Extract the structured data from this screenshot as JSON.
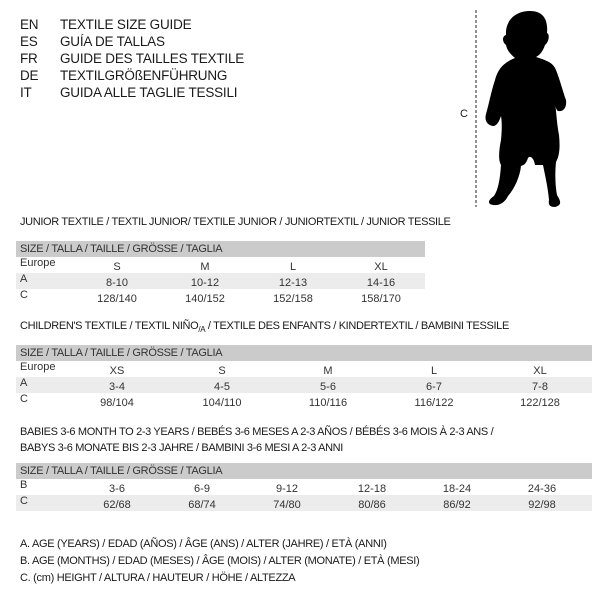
{
  "title_lines": [
    {
      "code": "EN",
      "text": "TEXTILE SIZE GUIDE"
    },
    {
      "code": "ES",
      "text": "GUÍA DE TALLAS"
    },
    {
      "code": "FR",
      "text": "GUIDE DES TAILLES TEXTILE"
    },
    {
      "code": "DE",
      "text": "TEXTILGRÖßENFÜHRUNG"
    },
    {
      "code": "IT",
      "text": "GUIDA ALLE TAGLIE TESSILI"
    }
  ],
  "figure": {
    "measure_label": "C",
    "icon": "baby-silhouette"
  },
  "junior": {
    "title": "JUNIOR TEXTILE / TEXTIL JUNIOR/ TEXTILE JUNIOR / JUNIORTEXTIL / JUNIOR TESSILE",
    "header": "SIZE / TALLA / TAILLE / GRÖSSE / TAGLIA",
    "rows": [
      {
        "label": "Europe",
        "cells": [
          "S",
          "M",
          "L",
          "XL"
        ]
      },
      {
        "label": "A",
        "cells": [
          "8-10",
          "10-12",
          "12-13",
          "14-16"
        ]
      },
      {
        "label": "C",
        "cells": [
          "128/140",
          "140/152",
          "152/158",
          "158/170"
        ]
      }
    ]
  },
  "children": {
    "title_a": "CHILDREN'S TEXTILE / TEXTIL NIÑO",
    "title_sub": "/A",
    "title_b": " / TEXTILE DES ENFANTS / KINDERTEXTIL / BAMBINI TESSILE",
    "header": "SIZE / TALLA / TAILLE / GRÖSSE / TAGLIA",
    "rows": [
      {
        "label": "Europe",
        "cells": [
          "XS",
          "S",
          "M",
          "L",
          "XL"
        ]
      },
      {
        "label": "A",
        "cells": [
          "3-4",
          "4-5",
          "5-6",
          "6-7",
          "7-8"
        ]
      },
      {
        "label": "C",
        "cells": [
          "98/104",
          "104/110",
          "110/116",
          "116/122",
          "122/128"
        ]
      }
    ]
  },
  "babies": {
    "title_line1": "BABIES 3-6 MONTH TO 2-3 YEARS / BEBÉS 3-6 MESES A 2-3 AÑOS / BÉBÉS 3-6 MOIS À 2-3 ANS /",
    "title_line2": "BABYS 3-6 MONATE BIS 2-3 JAHRE / BAMBINI 3-6 MESI A 2-3 ANNI",
    "header": "SIZE / TALLA / TAILLE / GRÖSSE / TAGLIA",
    "rows": [
      {
        "label": "B",
        "cells": [
          "3-6",
          "6-9",
          "9-12",
          "12-18",
          "18-24",
          "24-36"
        ]
      },
      {
        "label": "C",
        "cells": [
          "62/68",
          "68/74",
          "74/80",
          "80/86",
          "86/92",
          "92/98"
        ]
      }
    ]
  },
  "legend": [
    "A. AGE (YEARS) / EDAD (AÑOS) / ÂGE (ANS) / ALTER (JAHRE) / ETÀ (ANNI)",
    "B. AGE (MONTHS) / EDAD (MESES) / ÂGE (MOIS) / ALTER (MONATE) / ETÀ (MESI)",
    "C. (cm) HEIGHT / ALTURA / HAUTEUR / HÖHE / ALTEZZA"
  ]
}
